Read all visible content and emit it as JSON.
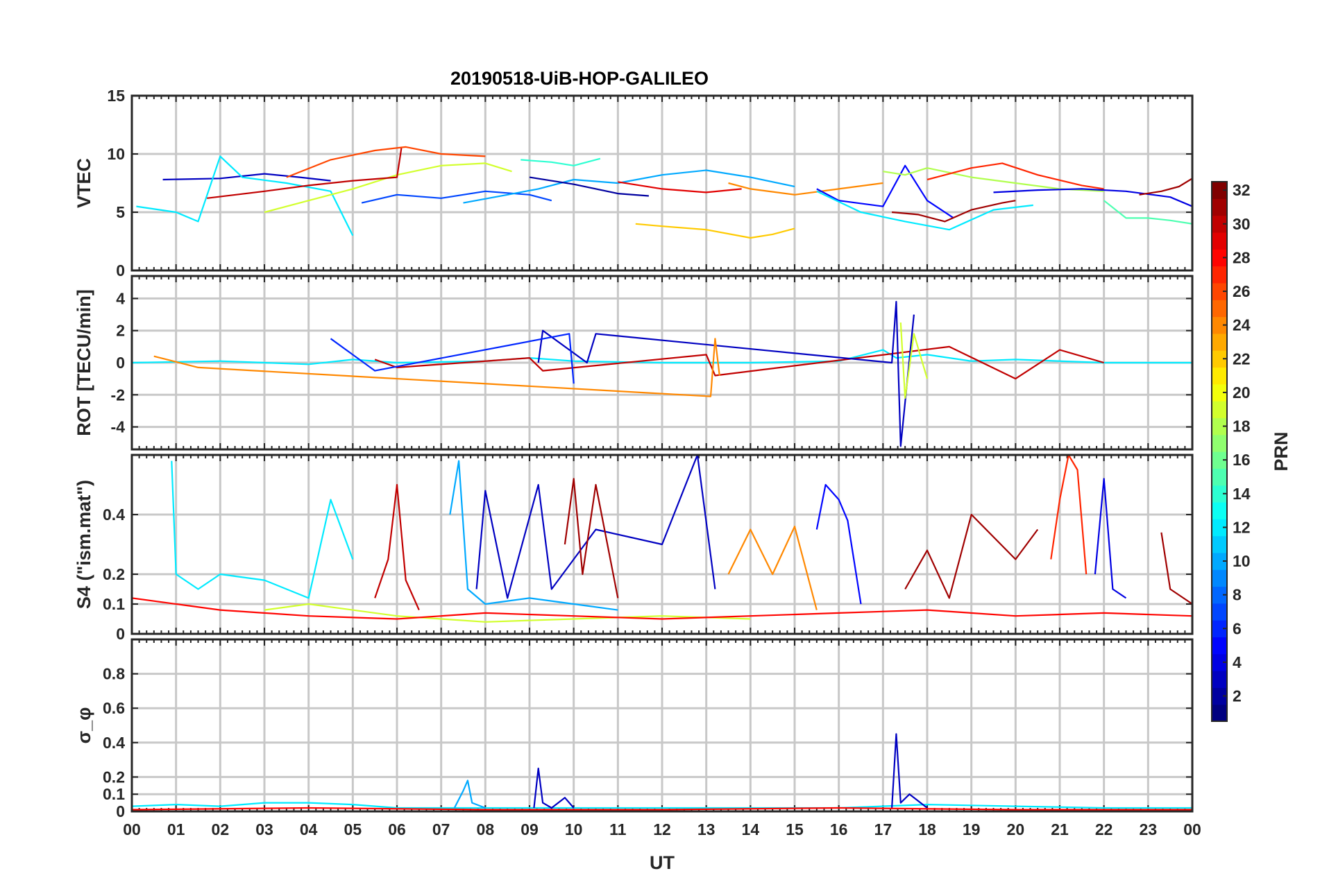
{
  "title": "20190518-UiB-HOP-GALILEO",
  "colors": {
    "frame": "#262626",
    "grid": "#c8c8c8",
    "colormap": "jet"
  },
  "chart_data": [
    {
      "type": "line",
      "panel": "vtec",
      "ylabel": "VTEC",
      "xlabel": "",
      "xlim": [
        0,
        24
      ],
      "ylim": [
        0,
        15
      ],
      "yticks": [
        0,
        5,
        10,
        15
      ],
      "grid": true,
      "series": [
        {
          "prn": 3,
          "x": [
            0.7,
            2.0,
            3.0,
            3.8,
            4.5
          ],
          "y": [
            7.8,
            7.9,
            8.3,
            8.0,
            7.7
          ]
        },
        {
          "prn": 12,
          "x": [
            0.1,
            1.0,
            1.5,
            2.0,
            2.5,
            3.5,
            4.5,
            5.0
          ],
          "y": [
            5.5,
            5.0,
            4.2,
            9.8,
            8.0,
            7.5,
            6.8,
            3.0
          ]
        },
        {
          "prn": 26,
          "x": [
            3.5,
            4.5,
            5.5,
            6.2,
            7.0,
            8.0
          ],
          "y": [
            8.0,
            9.5,
            10.3,
            10.6,
            10.0,
            9.8
          ]
        },
        {
          "prn": 19,
          "x": [
            3.0,
            4.0,
            5.0,
            6.0,
            7.0,
            8.0,
            8.6
          ],
          "y": [
            5.0,
            6.0,
            7.0,
            8.2,
            9.0,
            9.2,
            8.5
          ]
        },
        {
          "prn": 30,
          "x": [
            1.7,
            3.0,
            4.0,
            5.0,
            6.0,
            6.1
          ],
          "y": [
            6.2,
            6.8,
            7.3,
            7.7,
            8.0,
            10.5
          ]
        },
        {
          "prn": 7,
          "x": [
            5.2,
            6.0,
            7.0,
            8.0,
            9.0,
            9.5
          ],
          "y": [
            5.8,
            6.5,
            6.2,
            6.8,
            6.5,
            6.0
          ]
        },
        {
          "prn": 10,
          "x": [
            7.5,
            8.5,
            9.2,
            10.0,
            11.0,
            12.0,
            13.0,
            14.0,
            15.0
          ],
          "y": [
            5.8,
            6.5,
            7.0,
            7.8,
            7.5,
            8.2,
            8.6,
            8.0,
            7.2
          ]
        },
        {
          "prn": 14,
          "x": [
            8.8,
            9.5,
            10.0,
            10.6
          ],
          "y": [
            9.5,
            9.3,
            9.0,
            9.6
          ]
        },
        {
          "prn": 2,
          "x": [
            9.0,
            10.0,
            11.0,
            11.7
          ],
          "y": [
            8.0,
            7.4,
            6.6,
            6.4
          ]
        },
        {
          "prn": 22,
          "x": [
            11.4,
            12.0,
            13.0,
            14.0,
            14.5,
            15.0
          ],
          "y": [
            4.0,
            3.8,
            3.5,
            2.8,
            3.1,
            3.6
          ]
        },
        {
          "prn": 29,
          "x": [
            11.0,
            12.0,
            13.0,
            13.8
          ],
          "y": [
            7.6,
            7.0,
            6.7,
            7.0
          ]
        },
        {
          "prn": 24,
          "x": [
            13.5,
            14.0,
            15.0,
            16.0,
            17.0
          ],
          "y": [
            7.5,
            7.0,
            6.5,
            7.0,
            7.5
          ]
        },
        {
          "prn": 5,
          "x": [
            15.5,
            16.0,
            17.0,
            17.5,
            18.0,
            18.6
          ],
          "y": [
            7.0,
            6.0,
            5.5,
            9.0,
            6.0,
            4.5
          ]
        },
        {
          "prn": 31,
          "x": [
            17.2,
            17.8,
            18.4,
            19.0,
            19.7,
            20.0
          ],
          "y": [
            5.0,
            4.8,
            4.2,
            5.2,
            5.8,
            6.0
          ]
        },
        {
          "prn": 12,
          "x": [
            15.5,
            16.5,
            17.5,
            18.5,
            19.5,
            20.4
          ],
          "y": [
            6.8,
            5.0,
            4.2,
            3.5,
            5.2,
            5.6
          ]
        },
        {
          "prn": 18,
          "x": [
            17.0,
            17.5,
            18.0,
            19.0,
            20.0,
            21.0,
            22.0
          ],
          "y": [
            8.5,
            8.2,
            8.8,
            8.0,
            7.5,
            7.0,
            6.8
          ]
        },
        {
          "prn": 27,
          "x": [
            18.0,
            19.0,
            19.7,
            20.5,
            21.5,
            22.0
          ],
          "y": [
            7.8,
            8.8,
            9.2,
            8.2,
            7.3,
            7.0
          ]
        },
        {
          "prn": 4,
          "x": [
            19.5,
            20.5,
            21.5,
            22.5,
            23.5,
            24.0
          ],
          "y": [
            6.7,
            6.9,
            7.0,
            6.8,
            6.3,
            5.5
          ]
        },
        {
          "prn": 15,
          "x": [
            22.0,
            22.5,
            23.0,
            23.5,
            24.0
          ],
          "y": [
            6.0,
            4.5,
            4.5,
            4.3,
            4.0
          ]
        },
        {
          "prn": 31,
          "x": [
            22.8,
            23.3,
            23.7,
            24.0
          ],
          "y": [
            6.5,
            6.8,
            7.2,
            7.9
          ]
        }
      ]
    },
    {
      "type": "line",
      "panel": "rot",
      "ylabel": "ROT [TECU/min]",
      "xlabel": "",
      "xlim": [
        0,
        24
      ],
      "ylim": [
        -5.4,
        5.4
      ],
      "yticks": [
        -4,
        -2,
        0,
        2,
        4
      ],
      "grid": true,
      "series": [
        {
          "prn": 12,
          "x": [
            0,
            2,
            4,
            5,
            6,
            8,
            9,
            10,
            12,
            14,
            16,
            17,
            17.3,
            18,
            19,
            20,
            22,
            24
          ],
          "y": [
            0,
            0.1,
            -0.1,
            0.2,
            0,
            0.1,
            0.3,
            0.1,
            0,
            0,
            0.1,
            0.8,
            0.3,
            0.5,
            0.1,
            0.2,
            0,
            0
          ]
        },
        {
          "prn": 30,
          "x": [
            5.5,
            6.0,
            9.0,
            9.3,
            13.0,
            13.2,
            18.5,
            20.0,
            21.0,
            22.0
          ],
          "y": [
            0.2,
            -0.3,
            0.3,
            -0.5,
            0.5,
            -0.8,
            1.0,
            -1.0,
            0.8,
            0
          ]
        },
        {
          "prn": 3,
          "x": [
            9.2,
            9.3,
            10.3,
            10.5,
            17.2,
            17.3,
            17.4,
            17.7
          ],
          "y": [
            0,
            2.0,
            0,
            1.8,
            0,
            3.8,
            -5.2,
            3.0
          ]
        },
        {
          "prn": 24,
          "x": [
            0.5,
            1.5,
            13.1,
            13.2,
            13.3
          ],
          "y": [
            0.4,
            -0.3,
            -2.1,
            1.5,
            -0.8
          ]
        },
        {
          "prn": 19,
          "x": [
            17.4,
            17.5,
            17.7,
            18.0
          ],
          "y": [
            2.5,
            -2.2,
            1.8,
            -1.0
          ]
        },
        {
          "prn": 6,
          "x": [
            4.5,
            5.5,
            9.9,
            10.0
          ],
          "y": [
            1.5,
            -0.5,
            1.8,
            -1.3
          ]
        }
      ]
    },
    {
      "type": "line",
      "panel": "s4",
      "ylabel": "S4 (\"ism.mat\")",
      "xlabel": "",
      "xlim": [
        0,
        24
      ],
      "ylim": [
        0,
        0.6
      ],
      "yticks": [
        0,
        0.1,
        0.2,
        0.4
      ],
      "grid": true,
      "series": [
        {
          "prn": 12,
          "x": [
            0.9,
            1.0,
            1.5,
            2.0,
            3.0,
            4.0,
            4.5,
            5.0
          ],
          "y": [
            0.58,
            0.2,
            0.15,
            0.2,
            0.18,
            0.12,
            0.45,
            0.25
          ]
        },
        {
          "prn": 30,
          "x": [
            5.5,
            5.8,
            6.0,
            6.2,
            6.5
          ],
          "y": [
            0.12,
            0.25,
            0.5,
            0.18,
            0.08
          ]
        },
        {
          "prn": 3,
          "x": [
            7.8,
            8.0,
            8.5,
            9.2,
            9.5,
            10.5,
            12.0,
            12.8,
            13.2
          ],
          "y": [
            0.15,
            0.48,
            0.12,
            0.5,
            0.15,
            0.35,
            0.3,
            0.6,
            0.15
          ]
        },
        {
          "prn": 31,
          "x": [
            9.8,
            10.0,
            10.2,
            10.5,
            11.0
          ],
          "y": [
            0.3,
            0.52,
            0.2,
            0.5,
            0.12
          ]
        },
        {
          "prn": 24,
          "x": [
            13.5,
            14.0,
            14.5,
            15.0,
            15.5
          ],
          "y": [
            0.2,
            0.35,
            0.2,
            0.36,
            0.08
          ]
        },
        {
          "prn": 5,
          "x": [
            15.5,
            15.7,
            16.0,
            16.2,
            16.5
          ],
          "y": [
            0.35,
            0.5,
            0.45,
            0.38,
            0.1
          ]
        },
        {
          "prn": 31,
          "x": [
            17.5,
            18.0,
            18.5,
            19.0,
            20.0,
            20.5
          ],
          "y": [
            0.15,
            0.28,
            0.12,
            0.4,
            0.25,
            0.35
          ]
        },
        {
          "prn": 27,
          "x": [
            20.8,
            21.0,
            21.2,
            21.4,
            21.6
          ],
          "y": [
            0.25,
            0.45,
            0.6,
            0.55,
            0.2
          ]
        },
        {
          "prn": 4,
          "x": [
            21.8,
            22.0,
            22.2,
            22.5
          ],
          "y": [
            0.2,
            0.52,
            0.15,
            0.12
          ]
        },
        {
          "prn": 31,
          "x": [
            23.3,
            23.5,
            23.8,
            24.0
          ],
          "y": [
            0.34,
            0.15,
            0.12,
            0.1
          ]
        },
        {
          "prn": 10,
          "x": [
            7.2,
            7.4,
            7.6,
            8.0,
            9.0,
            10.0,
            11.0
          ],
          "y": [
            0.4,
            0.58,
            0.15,
            0.1,
            0.12,
            0.1,
            0.08
          ]
        },
        {
          "prn": 19,
          "x": [
            3.0,
            4.0,
            6.0,
            7.0,
            8.0,
            10.0,
            12.0,
            14.0
          ],
          "y": [
            0.08,
            0.1,
            0.06,
            0.05,
            0.04,
            0.05,
            0.06,
            0.05
          ]
        },
        {
          "prn": 28,
          "x": [
            0,
            2,
            4,
            6,
            8,
            10,
            12,
            14,
            16,
            18,
            20,
            22,
            24
          ],
          "y": [
            0.12,
            0.08,
            0.06,
            0.05,
            0.07,
            0.06,
            0.05,
            0.06,
            0.07,
            0.08,
            0.06,
            0.07,
            0.06
          ]
        }
      ]
    },
    {
      "type": "line",
      "panel": "sigma_phi",
      "ylabel": "σ_φ",
      "xlabel": "UT",
      "xlim": [
        0,
        24
      ],
      "ylim": [
        0,
        1.0
      ],
      "yticks": [
        0,
        0.1,
        0.2,
        0.4,
        0.6,
        0.8
      ],
      "xtick_labels": [
        "00",
        "01",
        "02",
        "03",
        "04",
        "05",
        "06",
        "07",
        "08",
        "09",
        "10",
        "11",
        "12",
        "13",
        "14",
        "15",
        "16",
        "17",
        "18",
        "19",
        "20",
        "21",
        "22",
        "23",
        "00"
      ],
      "grid": true,
      "series": [
        {
          "prn": 12,
          "x": [
            0,
            1,
            2,
            3,
            4,
            5,
            6,
            8,
            10,
            12,
            14,
            16,
            18,
            20,
            22,
            24
          ],
          "y": [
            0.03,
            0.04,
            0.03,
            0.05,
            0.05,
            0.04,
            0.02,
            0.02,
            0.02,
            0.02,
            0.02,
            0.02,
            0.04,
            0.03,
            0.02,
            0.02
          ]
        },
        {
          "prn": 10,
          "x": [
            7.3,
            7.5,
            7.6,
            7.7,
            8.0
          ],
          "y": [
            0.02,
            0.12,
            0.18,
            0.05,
            0.02
          ]
        },
        {
          "prn": 3,
          "x": [
            9.1,
            9.2,
            9.3,
            9.5,
            9.8,
            10.0
          ],
          "y": [
            0.02,
            0.25,
            0.05,
            0.02,
            0.08,
            0.02
          ]
        },
        {
          "prn": 3,
          "x": [
            17.2,
            17.3,
            17.4,
            17.6,
            18.0
          ],
          "y": [
            0.02,
            0.45,
            0.05,
            0.1,
            0.02
          ]
        },
        {
          "prn": 28,
          "x": [
            0,
            4,
            8,
            12,
            16,
            20,
            24
          ],
          "y": [
            0.01,
            0.02,
            0.01,
            0.01,
            0.02,
            0.01,
            0.01
          ]
        }
      ]
    }
  ],
  "colorbar": {
    "label": "PRN",
    "min": 1,
    "max": 32,
    "tick_labels": [
      "2",
      "4",
      "6",
      "8",
      "10",
      "12",
      "14",
      "16",
      "18",
      "20",
      "22",
      "24",
      "26",
      "28",
      "30",
      "32"
    ]
  }
}
